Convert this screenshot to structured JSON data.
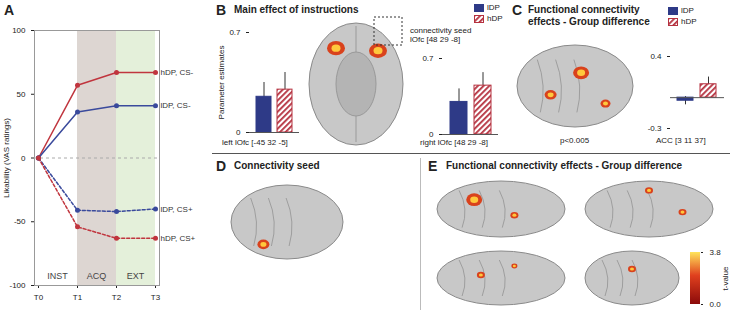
{
  "chart_data": [
    {
      "panel": "A",
      "type": "line",
      "y_label": "Likability (VAS ratings)",
      "categories": [
        "T0",
        "T1",
        "T2",
        "T3"
      ],
      "ylim": [
        -100,
        100
      ],
      "yticks": [
        -100,
        -50,
        0,
        50,
        100
      ],
      "marker": "circle",
      "series": [
        {
          "name": "hDP, CS-",
          "color": "#c0353e",
          "line_style": "solid",
          "values": [
            0,
            57,
            67,
            67
          ]
        },
        {
          "name": "lDP, CS-",
          "color": "#3a4a9c",
          "line_style": "solid",
          "values": [
            0,
            36,
            41,
            41
          ]
        },
        {
          "name": "lDP, CS+",
          "color": "#3a4a9c",
          "line_style": "dashed",
          "values": [
            0,
            -41,
            -42,
            -40
          ]
        },
        {
          "name": "hDP, CS+",
          "color": "#c0353e",
          "line_style": "dashed",
          "values": [
            0,
            -54,
            -63,
            -63
          ]
        }
      ],
      "phases": [
        {
          "label": "INST",
          "from": "T0",
          "to": "T1"
        },
        {
          "label": "ACQ",
          "from": "T1",
          "to": "T2",
          "color": "#ddd6d2"
        },
        {
          "label": "EXT",
          "from": "T2",
          "to": "T3",
          "color": "#e4f0da"
        }
      ]
    },
    {
      "panel": "B",
      "type": "bar",
      "title": "Main effect of instructions",
      "y_label": "Parameter estimates",
      "categories": [
        "left lOfc [-45 32 -5]",
        "right lOfc [48 29 -8]"
      ],
      "ylim": [
        0,
        0.7
      ],
      "yticks": [
        0,
        0.7
      ],
      "legend": "top-right",
      "series": [
        {
          "name": "lDP",
          "color": "#2e3a87",
          "values": [
            0.25,
            0.3
          ],
          "errors": [
            0.1,
            0.12
          ]
        },
        {
          "name": "hDP",
          "color": "#b5313f",
          "values": [
            0.3,
            0.45
          ],
          "errors": [
            0.12,
            0.12
          ]
        }
      ],
      "annotations": [
        "connectivity seed lOfc [48 29 -8]"
      ]
    },
    {
      "panel": "C",
      "type": "bar",
      "title": "Functional connectivity effects - Group difference",
      "categories": [
        "ACC [3 11 37]"
      ],
      "ylim": [
        -0.3,
        0.4
      ],
      "yticks": [
        -0.3,
        0.4
      ],
      "legend": "top-right",
      "series": [
        {
          "name": "lDP",
          "color": "#2e3a87",
          "values": [
            -0.03
          ],
          "errors": [
            0.04
          ]
        },
        {
          "name": "hDP",
          "color": "#b5313f",
          "values": [
            0.13
          ],
          "errors": [
            0.07
          ]
        }
      ],
      "annotations": [
        "p<0.005"
      ]
    }
  ],
  "images": [
    {
      "panel": "D",
      "title": "Connectivity seed"
    },
    {
      "panel": "E",
      "title": "Functional connectivity effects - Group difference",
      "color_bar": {
        "label": "t-value",
        "range": [
          0,
          3.8
        ],
        "ticks": [
          {
            "value": 3.8,
            "label": "3.8"
          },
          {
            "value": 0,
            "label": "0.0"
          }
        ]
      }
    }
  ]
}
